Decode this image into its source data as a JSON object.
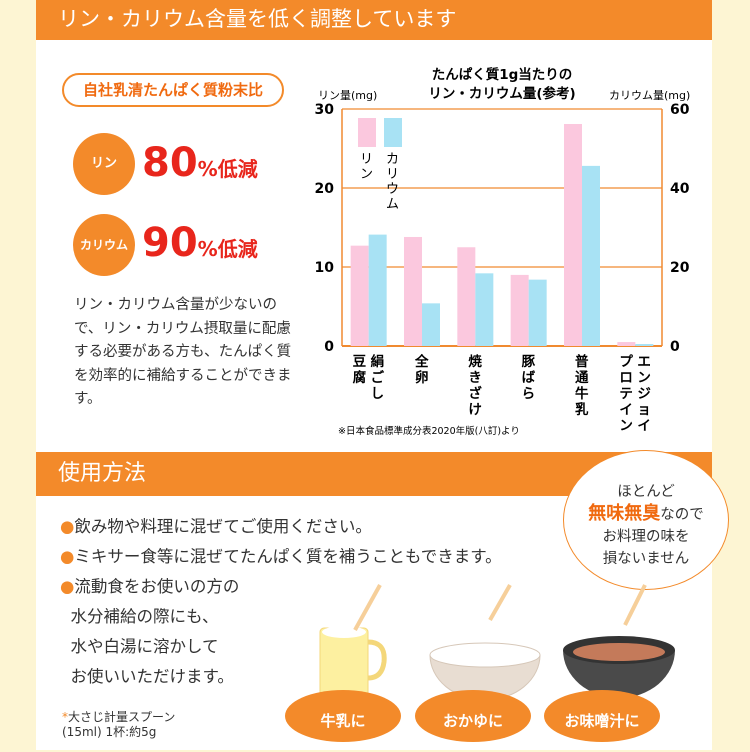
{
  "header": {
    "title": "リン・カリウム含量を低く調整しています"
  },
  "comparison": {
    "pill": "自社乳清たんぱく質粉末比",
    "items": [
      {
        "badge": "リン",
        "value": "80",
        "unit": "%低減"
      },
      {
        "badge": "カリウム",
        "value": "90",
        "unit": "%低減"
      }
    ],
    "description": "リン・カリウム含量が少ないので、リン・カリウム摂取量に配慮する必要がある方も、たんぱく質を効率的に補給することができます。"
  },
  "chart_data": {
    "type": "bar",
    "title": [
      "たんぱく質1g当たりの",
      "リン・カリウム量(参考)"
    ],
    "ylabel_left": "リン量(mg)",
    "ylabel_right": "カリウム量(mg)",
    "ylim_left": [
      0,
      30
    ],
    "ylim_right": [
      0,
      60
    ],
    "yticks_left": [
      "0",
      "10",
      "20",
      "30"
    ],
    "yticks_right": [
      "0",
      "20",
      "40",
      "60"
    ],
    "categories": [
      "絹ごし豆腐",
      "全卵",
      "焼きざけ",
      "豚ばら",
      "普通牛乳",
      "エンジョイプロテイン"
    ],
    "series": [
      {
        "name": "リン",
        "axis": "left",
        "color": "#fbc8de",
        "values": [
          12.7,
          13.8,
          12.5,
          9.0,
          28.1,
          0.5
        ]
      },
      {
        "name": "カリウム",
        "axis": "right",
        "color": "#a8e2f4",
        "values": [
          28.2,
          10.8,
          18.4,
          16.8,
          45.6,
          0.5
        ]
      }
    ],
    "grid": true,
    "legend": "top-left",
    "source": "※日本食品標準成分表2020年版(八訂)より"
  },
  "usage": {
    "title": "使用方法",
    "bullets": [
      "飲み物や料理に混ぜてご使用ください。",
      "ミキサー食等に混ぜてたんぱく質を補うこともできます。",
      "流動食をお使いの方の",
      "水分補給の際にも、",
      "水や白湯に溶かして",
      "お使いいただけます。"
    ],
    "note_mark": "*",
    "note": [
      "大さじ計量スプーン",
      "(15ml) 1杯:約5g"
    ],
    "bubble": {
      "line1": "ほとんど",
      "highlight": "無味無臭",
      "line2": "なので",
      "line3": "お料理の味を",
      "line4": "損ないません"
    },
    "plates": [
      "牛乳に",
      "おかゆに",
      "お味噌汁に"
    ]
  }
}
